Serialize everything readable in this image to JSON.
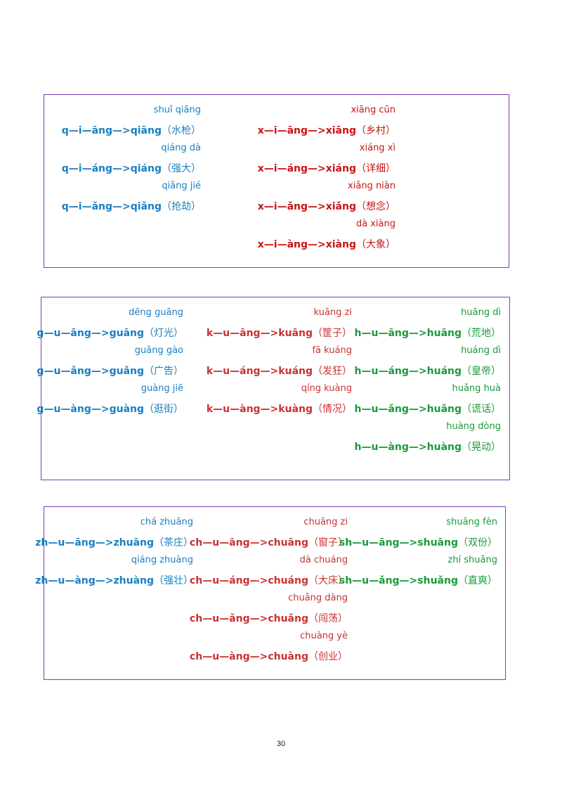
{
  "boxes": [
    {
      "columns": [
        {
          "color": "#1a7fc0",
          "entries": [
            {
              "pinyin": "shuǐ qiāng",
              "spelling": "q—i—āng—>qiāng",
              "word": "（水枪）"
            },
            {
              "pinyin": "qiáng dà",
              "spelling": "q—i—áng—>qiáng",
              "word": "（强大）"
            },
            {
              "pinyin": "qiǎng jié",
              "spelling": "q—i—ǎng—>qiǎng",
              "word": "（抢劫）"
            }
          ]
        },
        {
          "color": "#c81414",
          "entries": [
            {
              "pinyin": "xiāng cūn",
              "spelling": "x—i—āng—>xiāng",
              "word": "（乡村）"
            },
            {
              "pinyin": "xiáng xì",
              "spelling": "x—i—áng—>xiáng",
              "word": "（详细）"
            },
            {
              "pinyin": "xiǎng niàn",
              "spelling": "x—i—ǎng—>xiǎng",
              "word": "（想念）"
            },
            {
              "pinyin": "dà xiàng",
              "spelling": "x—i—àng—>xiàng",
              "word": "（大象）"
            }
          ]
        }
      ]
    },
    {
      "columns": [
        {
          "color": "#1a7fc0",
          "entries": [
            {
              "pinyin": "dēng guāng",
              "spelling": "g—u—āng—>guāng",
              "word": "（灯光）"
            },
            {
              "pinyin": "guǎng gào",
              "spelling": "g—u—ǎng—>guǎng",
              "word": "（广告）"
            },
            {
              "pinyin": "guàng jiē",
              "spelling": "g—u—àng—>guàng",
              "word": "（逛街）"
            }
          ]
        },
        {
          "color": "#c83232",
          "entries": [
            {
              "pinyin": "kuāng zi",
              "spelling": "k—u—āng—>kuāng",
              "word": "（筐子）"
            },
            {
              "pinyin": "fā kuáng",
              "spelling": "k—u—áng—>kuáng",
              "word": "（发狂）"
            },
            {
              "pinyin": "qíng kuàng",
              "spelling": "k—u—àng—>kuàng",
              "word": "（情况）"
            }
          ]
        },
        {
          "color": "#1a9a3a",
          "entries": [
            {
              "pinyin": "huāng dì",
              "spelling": "h—u—āng—>huāng",
              "word": "（荒地）"
            },
            {
              "pinyin": "huáng dì",
              "spelling": "h—u—áng—>huáng",
              "word": "（皇帝）"
            },
            {
              "pinyin": "huǎng huà",
              "spelling": "h—u—ǎng—>huǎng",
              "word": "（谎话）"
            },
            {
              "pinyin": "huàng dòng",
              "spelling": "h—u—àng—>huàng",
              "word": "（晃动）"
            }
          ]
        }
      ]
    },
    {
      "columns": [
        {
          "color": "#1a7fc0",
          "entries": [
            {
              "pinyin": "chá zhuāng",
              "spelling": "zh—u—āng—>zhuāng",
              "word": "（茶庄）"
            },
            {
              "pinyin": "qiáng zhuàng",
              "spelling": "zh—u—àng—>zhuàng",
              "word": "（强壮）"
            }
          ]
        },
        {
          "color": "#c83232",
          "entries": [
            {
              "pinyin": "chuāng zi",
              "spelling": "ch—u—āng—>chuāng",
              "word": "（窗子）"
            },
            {
              "pinyin": "dà chuáng",
              "spelling": "ch—u—áng—>chuáng",
              "word": "（大床）"
            },
            {
              "pinyin": "chuǎng dàng",
              "spelling": "ch—u—ǎng—>chuǎng",
              "word": "（闯荡）"
            },
            {
              "pinyin": "chuàng yè",
              "spelling": "ch—u—àng—>chuàng",
              "word": "（创业）"
            }
          ]
        },
        {
          "color": "#1a9a3a",
          "entries": [
            {
              "pinyin": "shuāng fèn",
              "spelling": "sh—u—āng—>shuāng",
              "word": "（双份）"
            },
            {
              "pinyin": "zhí shuǎng",
              "spelling": "sh—u—ǎng—>shuǎng",
              "word": "（直爽）"
            }
          ]
        }
      ]
    }
  ],
  "page_number": "30"
}
